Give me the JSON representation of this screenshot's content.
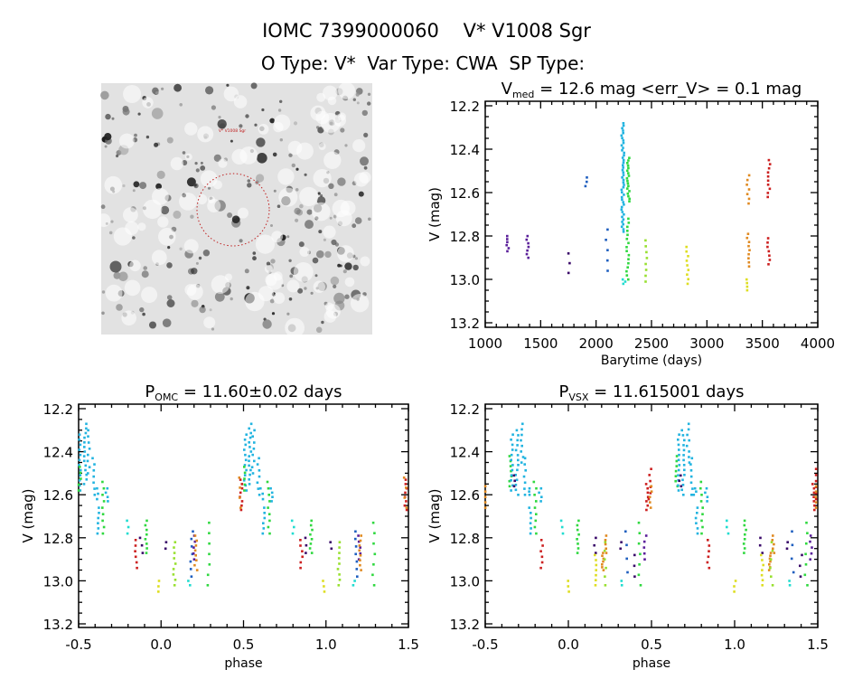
{
  "header": {
    "title": "IOMC 7399000060    V* V1008 Sgr",
    "subtitle": "O Type: V*  Var Type: CWA  SP Type:"
  },
  "image_panel": {
    "target_label": "V* V1008 Sgr",
    "circle_color": "#c02020"
  },
  "colors": {
    "purple": "#5a1f9a",
    "indigo": "#3a0a6a",
    "blue": "#1f5fbf",
    "cyan": "#22b4e0",
    "teal": "#22dcd0",
    "green": "#30d840",
    "lime": "#98e030",
    "yellow": "#dede22",
    "orange": "#e08a22",
    "red": "#cc2020"
  },
  "chart_data": [
    {
      "type": "scatter",
      "title_main": "V",
      "title_sub": "med",
      "title_rest": " = 12.6 mag <err_V> = 0.1 mag",
      "xlabel": "Barytime (days)",
      "ylabel": "V (mag)",
      "xlim": [
        1000,
        4000
      ],
      "ylim": [
        13.22,
        12.18
      ],
      "y_inverted": true,
      "xticks": [
        1000,
        1500,
        2000,
        2500,
        3000,
        3500,
        4000
      ],
      "yticks": [
        "12.2",
        "12.4",
        "12.6",
        "12.8",
        "13.0",
        "13.2"
      ],
      "groups": [
        {
          "x": 1200,
          "mag_min": 12.8,
          "mag_max": 12.87,
          "n": 6,
          "color": "purple"
        },
        {
          "x": 1380,
          "mag_min": 12.8,
          "mag_max": 12.9,
          "n": 7,
          "color": "purple"
        },
        {
          "x": 1750,
          "mag_min": 12.88,
          "mag_max": 12.97,
          "n": 3,
          "color": "indigo"
        },
        {
          "x": 1905,
          "mag_min": 12.53,
          "mag_max": 12.57,
          "n": 3,
          "color": "blue"
        },
        {
          "x": 2100,
          "mag_min": 12.77,
          "mag_max": 12.96,
          "n": 5,
          "color": "blue"
        },
        {
          "x": 2240,
          "mag_min": 12.28,
          "mag_max": 12.78,
          "n": 45,
          "color": "cyan"
        },
        {
          "x": 2252,
          "mag_min": 13.0,
          "mag_max": 13.02,
          "n": 3,
          "color": "teal"
        },
        {
          "x": 2290,
          "mag_min": 12.44,
          "mag_max": 12.64,
          "n": 18,
          "color": "green"
        },
        {
          "x": 2285,
          "mag_min": 12.72,
          "mag_max": 13.0,
          "n": 16,
          "color": "green"
        },
        {
          "x": 2450,
          "mag_min": 12.82,
          "mag_max": 13.01,
          "n": 8,
          "color": "lime"
        },
        {
          "x": 2820,
          "mag_min": 12.85,
          "mag_max": 13.02,
          "n": 9,
          "color": "yellow"
        },
        {
          "x": 3370,
          "mag_min": 12.52,
          "mag_max": 12.65,
          "n": 7,
          "color": "orange"
        },
        {
          "x": 3372,
          "mag_min": 12.79,
          "mag_max": 12.94,
          "n": 9,
          "color": "orange"
        },
        {
          "x": 3368,
          "mag_min": 13.0,
          "mag_max": 13.05,
          "n": 4,
          "color": "yellow"
        },
        {
          "x": 3560,
          "mag_min": 12.45,
          "mag_max": 12.62,
          "n": 10,
          "color": "red"
        },
        {
          "x": 3555,
          "mag_min": 12.81,
          "mag_max": 12.93,
          "n": 7,
          "color": "red"
        }
      ]
    },
    {
      "type": "scatter",
      "title_main": "P",
      "title_sub": "OMC",
      "title_rest": " = 11.60±0.02 days",
      "xlabel": "phase",
      "ylabel": "V (mag)",
      "xlim": [
        -0.5,
        1.5
      ],
      "ylim": [
        13.22,
        12.18
      ],
      "y_inverted": true,
      "xticks": [
        "-0.5",
        "0.0",
        "0.5",
        "1.0",
        "1.5"
      ],
      "yticks": [
        "12.2",
        "12.4",
        "12.6",
        "12.8",
        "13.0",
        "13.2"
      ],
      "groups": [
        {
          "x": -0.49,
          "mag_min": 12.32,
          "mag_max": 12.58,
          "n": 12,
          "color": "cyan"
        },
        {
          "x": -0.46,
          "mag_min": 12.27,
          "mag_max": 12.55,
          "n": 14,
          "color": "cyan"
        },
        {
          "x": -0.44,
          "mag_min": 12.3,
          "mag_max": 12.5,
          "n": 8,
          "color": "cyan"
        },
        {
          "x": -0.495,
          "mag_min": 12.47,
          "mag_max": 12.58,
          "n": 5,
          "color": "green"
        },
        {
          "x": -0.41,
          "mag_min": 12.43,
          "mag_max": 12.6,
          "n": 7,
          "color": "cyan"
        },
        {
          "x": -0.39,
          "mag_min": 12.57,
          "mag_max": 12.62,
          "n": 3,
          "color": "cyan"
        },
        {
          "x": -0.38,
          "mag_min": 12.66,
          "mag_max": 12.78,
          "n": 6,
          "color": "cyan"
        },
        {
          "x": -0.35,
          "mag_min": 12.54,
          "mag_max": 12.78,
          "n": 9,
          "color": "green"
        },
        {
          "x": -0.33,
          "mag_min": 12.57,
          "mag_max": 12.63,
          "n": 4,
          "color": "cyan"
        },
        {
          "x": -0.2,
          "mag_min": 12.72,
          "mag_max": 12.78,
          "n": 3,
          "color": "teal"
        },
        {
          "x": -0.15,
          "mag_min": 12.81,
          "mag_max": 12.94,
          "n": 6,
          "color": "red"
        },
        {
          "x": -0.12,
          "mag_min": 12.8,
          "mag_max": 12.87,
          "n": 3,
          "color": "indigo"
        },
        {
          "x": -0.09,
          "mag_min": 12.72,
          "mag_max": 12.87,
          "n": 8,
          "color": "green"
        },
        {
          "x": -0.01,
          "mag_min": 13.0,
          "mag_max": 13.05,
          "n": 3,
          "color": "yellow"
        },
        {
          "x": 0.03,
          "mag_min": 12.82,
          "mag_max": 12.85,
          "n": 2,
          "color": "indigo"
        },
        {
          "x": 0.08,
          "mag_min": 12.82,
          "mag_max": 13.02,
          "n": 9,
          "color": "lime"
        },
        {
          "x": 0.17,
          "mag_min": 13.0,
          "mag_max": 13.02,
          "n": 2,
          "color": "teal"
        },
        {
          "x": 0.185,
          "mag_min": 12.77,
          "mag_max": 12.98,
          "n": 7,
          "color": "blue"
        },
        {
          "x": 0.2,
          "mag_min": 12.79,
          "mag_max": 12.9,
          "n": 5,
          "color": "purple"
        },
        {
          "x": 0.21,
          "mag_min": 12.79,
          "mag_max": 12.95,
          "n": 8,
          "color": "orange"
        },
        {
          "x": 0.29,
          "mag_min": 12.73,
          "mag_max": 13.02,
          "n": 7,
          "color": "green"
        },
        {
          "x": 0.485,
          "mag_min": 12.53,
          "mag_max": 12.67,
          "n": 8,
          "color": "red"
        },
        {
          "x": 0.48,
          "mag_min": 12.52,
          "mag_max": 12.66,
          "n": 4,
          "color": "orange"
        }
      ]
    },
    {
      "type": "scatter",
      "title_main": "P",
      "title_sub": "VSX",
      "title_rest": " = 11.615001 days",
      "xlabel": "phase",
      "ylabel": "V (mag)",
      "xlim": [
        -0.5,
        1.5
      ],
      "ylim": [
        13.22,
        12.18
      ],
      "y_inverted": true,
      "xticks": [
        "-0.5",
        "0.0",
        "0.5",
        "1.0",
        "1.5"
      ],
      "yticks": [
        "12.2",
        "12.4",
        "12.6",
        "12.8",
        "13.0",
        "13.2"
      ],
      "groups": [
        {
          "x": -0.35,
          "mag_min": 12.42,
          "mag_max": 12.56,
          "n": 7,
          "color": "green"
        },
        {
          "x": -0.34,
          "mag_min": 12.32,
          "mag_max": 12.58,
          "n": 12,
          "color": "cyan"
        },
        {
          "x": -0.31,
          "mag_min": 12.3,
          "mag_max": 12.6,
          "n": 14,
          "color": "cyan"
        },
        {
          "x": -0.28,
          "mag_min": 12.27,
          "mag_max": 12.45,
          "n": 8,
          "color": "cyan"
        },
        {
          "x": -0.33,
          "mag_min": 12.51,
          "mag_max": 12.56,
          "n": 3,
          "color": "indigo"
        },
        {
          "x": -0.26,
          "mag_min": 12.43,
          "mag_max": 12.6,
          "n": 7,
          "color": "cyan"
        },
        {
          "x": -0.24,
          "mag_min": 12.57,
          "mag_max": 12.6,
          "n": 3,
          "color": "cyan"
        },
        {
          "x": -0.23,
          "mag_min": 12.66,
          "mag_max": 12.78,
          "n": 6,
          "color": "cyan"
        },
        {
          "x": -0.2,
          "mag_min": 12.54,
          "mag_max": 12.78,
          "n": 9,
          "color": "green"
        },
        {
          "x": -0.17,
          "mag_min": 12.57,
          "mag_max": 12.63,
          "n": 4,
          "color": "cyan"
        },
        {
          "x": -0.16,
          "mag_min": 12.81,
          "mag_max": 12.94,
          "n": 6,
          "color": "red"
        },
        {
          "x": -0.04,
          "mag_min": 12.72,
          "mag_max": 12.78,
          "n": 3,
          "color": "teal"
        },
        {
          "x": 0.0,
          "mag_min": 13.0,
          "mag_max": 13.05,
          "n": 3,
          "color": "yellow"
        },
        {
          "x": 0.06,
          "mag_min": 12.72,
          "mag_max": 12.87,
          "n": 8,
          "color": "green"
        },
        {
          "x": 0.16,
          "mag_min": 12.8,
          "mag_max": 12.87,
          "n": 3,
          "color": "indigo"
        },
        {
          "x": 0.165,
          "mag_min": 12.88,
          "mag_max": 13.02,
          "n": 7,
          "color": "yellow"
        },
        {
          "x": 0.21,
          "mag_min": 12.87,
          "mag_max": 12.95,
          "n": 7,
          "color": "orange"
        },
        {
          "x": 0.22,
          "mag_min": 12.82,
          "mag_max": 13.02,
          "n": 6,
          "color": "lime"
        },
        {
          "x": 0.23,
          "mag_min": 12.79,
          "mag_max": 12.87,
          "n": 5,
          "color": "orange"
        },
        {
          "x": 0.32,
          "mag_min": 12.82,
          "mag_max": 12.85,
          "n": 2,
          "color": "indigo"
        },
        {
          "x": 0.325,
          "mag_min": 13.0,
          "mag_max": 13.02,
          "n": 2,
          "color": "teal"
        },
        {
          "x": 0.35,
          "mag_min": 12.77,
          "mag_max": 12.96,
          "n": 4,
          "color": "blue"
        },
        {
          "x": 0.4,
          "mag_min": 12.88,
          "mag_max": 12.98,
          "n": 3,
          "color": "indigo"
        },
        {
          "x": 0.43,
          "mag_min": 12.73,
          "mag_max": 13.02,
          "n": 7,
          "color": "green"
        },
        {
          "x": 0.46,
          "mag_min": 12.79,
          "mag_max": 12.9,
          "n": 5,
          "color": "purple"
        },
        {
          "x": 0.475,
          "mag_min": 12.55,
          "mag_max": 12.67,
          "n": 7,
          "color": "red"
        },
        {
          "x": 0.49,
          "mag_min": 12.48,
          "mag_max": 12.62,
          "n": 6,
          "color": "red"
        },
        {
          "x": 0.495,
          "mag_min": 12.56,
          "mag_max": 12.66,
          "n": 5,
          "color": "orange"
        }
      ]
    }
  ]
}
